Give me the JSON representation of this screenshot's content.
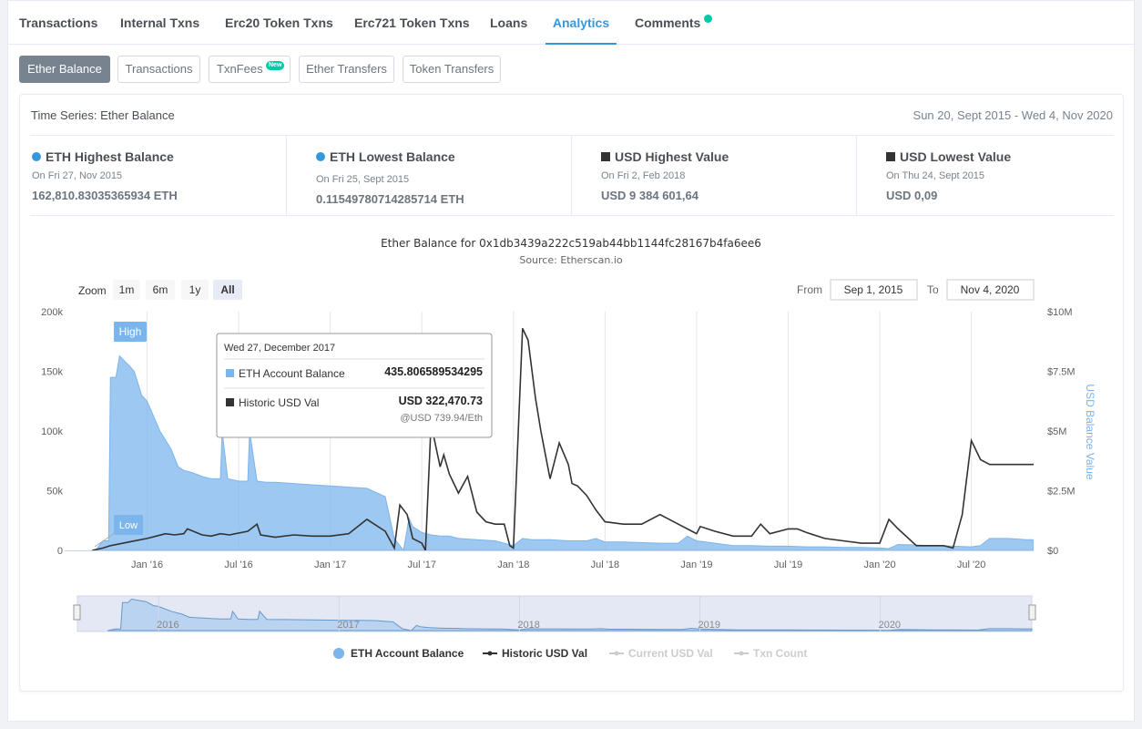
{
  "tabs": [
    {
      "label": "Transactions"
    },
    {
      "label": "Internal Txns"
    },
    {
      "label": "Erc20 Token Txns"
    },
    {
      "label": "Erc721 Token Txns"
    },
    {
      "label": "Loans"
    },
    {
      "label": "Analytics"
    },
    {
      "label": "Comments"
    }
  ],
  "active_tab": "Analytics",
  "subtabs": [
    {
      "label": "Ether Balance"
    },
    {
      "label": "Transactions"
    },
    {
      "label": "TxnFees",
      "badge": "New"
    },
    {
      "label": "Ether Transfers"
    },
    {
      "label": "Token Transfers"
    }
  ],
  "card": {
    "title": "Time Series: Ether Balance",
    "range": "Sun 20, Sept 2015 - Wed 4, Nov 2020"
  },
  "stats": [
    {
      "label": "ETH Highest Balance",
      "date": "On Fri 27, Nov 2015",
      "value": "162,810.83035365934 ETH"
    },
    {
      "label": "ETH Lowest Balance",
      "date": "On Fri 25, Sept 2015",
      "value": "0.11549780714285714 ETH"
    },
    {
      "label": "USD Highest Value",
      "date": "On Fri 2, Feb 2018",
      "value": "USD 9 384 601,64"
    },
    {
      "label": "USD Lowest Value",
      "date": "On Thu 24, Sept 2015",
      "value": "USD 0,09"
    }
  ],
  "colors": {
    "accent": "#3498db",
    "eth_area": "#7cb5ec",
    "usd_line": "#333333",
    "badge": "#00c9a7"
  },
  "chart_data": {
    "type": "area",
    "title": "Ether Balance for 0x1db3439a222c519ab44bb1144fc28167b4fa6ee6",
    "subtitle": "Source: Etherscan.io",
    "zoom": {
      "label": "Zoom",
      "buttons": [
        "1m",
        "6m",
        "1y",
        "All"
      ],
      "selected": "All"
    },
    "range_inputs": {
      "from_label": "From",
      "from": "Sep 1, 2015",
      "to_label": "To",
      "to": "Nov 4, 2020"
    },
    "x_ticks": [
      "Jan '16",
      "Jul '16",
      "Jan '17",
      "Jul '17",
      "Jan '18",
      "Jul '18",
      "Jan '19",
      "Jul '19",
      "Jan '20",
      "Jul '20"
    ],
    "y_left": {
      "ticks": [
        "0",
        "50k",
        "100k",
        "150k",
        "200k"
      ],
      "range": [
        0,
        200000
      ]
    },
    "y_right": {
      "label": "USD Balance Value",
      "ticks": [
        "$0",
        "$2.5M",
        "$5M",
        "$7.5M",
        "$10M"
      ],
      "range": [
        0,
        10000000
      ]
    },
    "navigator_labels": [
      "2016",
      "2017",
      "2018",
      "2019",
      "2020"
    ],
    "flags": [
      {
        "label": "High"
      },
      {
        "label": "Low"
      }
    ],
    "legend": [
      {
        "name": "ETH Account Balance",
        "enabled": true
      },
      {
        "name": "Historic USD Val",
        "enabled": true
      },
      {
        "name": "Current USD Val",
        "enabled": false
      },
      {
        "name": "Txn Count",
        "enabled": false
      }
    ],
    "tooltip": {
      "date": "Wed 27, December 2017",
      "eth_label": "ETH Account Balance",
      "eth_value": "435.806589534295",
      "usd_label": "Historic USD Val",
      "usd_value": "USD 322,470.73",
      "rate": "@USD 739.94/Eth"
    },
    "series": [
      {
        "name": "ETH Account Balance",
        "axis": "left",
        "x": [
          2015.72,
          2015.76,
          2015.79,
          2015.8,
          2015.83,
          2015.85,
          2015.9,
          2015.93,
          2015.97,
          2016.0,
          2016.07,
          2016.13,
          2016.17,
          2016.2,
          2016.25,
          2016.3,
          2016.35,
          2016.4,
          2016.41,
          2016.44,
          2016.5,
          2016.55,
          2016.56,
          2016.6,
          2016.65,
          2016.7,
          2016.8,
          2016.9,
          2017.0,
          2017.1,
          2017.2,
          2017.3,
          2017.35,
          2017.4,
          2017.43,
          2017.45,
          2017.5,
          2017.55,
          2017.6,
          2017.65,
          2017.7,
          2017.8,
          2017.9,
          2017.95,
          2018.0,
          2018.05,
          2018.1,
          2018.2,
          2018.3,
          2018.4,
          2018.45,
          2018.5,
          2018.6,
          2018.7,
          2018.8,
          2018.9,
          2018.95,
          2019.0,
          2019.05,
          2019.1,
          2019.2,
          2019.3,
          2019.4,
          2019.5,
          2019.6,
          2019.7,
          2019.8,
          2019.9,
          2020.0,
          2020.05,
          2020.1,
          2020.2,
          2020.3,
          2020.4,
          2020.5,
          2020.55,
          2020.6,
          2020.7,
          2020.8,
          2020.84
        ],
        "values": [
          500,
          8000,
          8000,
          145000,
          145000,
          162810,
          155000,
          150000,
          130000,
          125000,
          100000,
          85000,
          70000,
          67000,
          65000,
          62000,
          60000,
          60000,
          100000,
          60000,
          58000,
          58000,
          100000,
          58000,
          57000,
          57000,
          56000,
          55000,
          54000,
          53000,
          52000,
          45000,
          10000,
          0,
          27000,
          20000,
          15000,
          13000,
          12000,
          12000,
          10000,
          9000,
          8000,
          6000,
          4000,
          10000,
          9000,
          9000,
          8000,
          8000,
          10000,
          7000,
          7000,
          6500,
          6000,
          6000,
          12000,
          8000,
          7000,
          6000,
          4000,
          4000,
          3500,
          3500,
          3000,
          3000,
          2500,
          2500,
          2000,
          1500,
          5000,
          4500,
          4000,
          3500,
          3000,
          4000,
          10000,
          10000,
          9000,
          9000
        ]
      },
      {
        "name": "Historic USD Val",
        "axis": "right",
        "x": [
          2015.7,
          2015.76,
          2015.8,
          2015.9,
          2016.0,
          2016.05,
          2016.1,
          2016.15,
          2016.2,
          2016.22,
          2016.3,
          2016.35,
          2016.4,
          2016.45,
          2016.55,
          2016.6,
          2016.62,
          2016.7,
          2016.8,
          2016.9,
          2017.0,
          2017.1,
          2017.2,
          2017.3,
          2017.35,
          2017.38,
          2017.42,
          2017.45,
          2017.5,
          2017.52,
          2017.55,
          2017.6,
          2017.62,
          2017.65,
          2017.7,
          2017.75,
          2017.8,
          2017.85,
          2017.9,
          2017.95,
          2017.98,
          2018.0,
          2018.05,
          2018.08,
          2018.12,
          2018.15,
          2018.2,
          2018.25,
          2018.3,
          2018.32,
          2018.35,
          2018.4,
          2018.45,
          2018.5,
          2018.6,
          2018.7,
          2018.8,
          2018.9,
          2019.0,
          2019.02,
          2019.1,
          2019.2,
          2019.3,
          2019.35,
          2019.4,
          2019.5,
          2019.55,
          2019.6,
          2019.7,
          2019.8,
          2019.9,
          2020.0,
          2020.05,
          2020.1,
          2020.2,
          2020.3,
          2020.35,
          2020.4,
          2020.45,
          2020.5,
          2020.55,
          2020.6,
          2020.7,
          2020.8,
          2020.84
        ],
        "values": [
          0,
          100000,
          200000,
          350000,
          500000,
          600000,
          700000,
          650000,
          700000,
          900000,
          650000,
          600000,
          700000,
          650000,
          800000,
          1100000,
          650000,
          550000,
          650000,
          600000,
          600000,
          700000,
          1300000,
          800000,
          100000,
          1900000,
          1500000,
          500000,
          300000,
          0,
          5300000,
          3500000,
          4000000,
          3200000,
          2400000,
          3100000,
          1600000,
          1200000,
          1100000,
          1100000,
          200000,
          100000,
          9300000,
          8800000,
          6400000,
          5000000,
          3000000,
          4500000,
          3600000,
          2800000,
          2700000,
          2300000,
          1700000,
          1200000,
          1100000,
          1100000,
          1500000,
          1100000,
          700000,
          1000000,
          800000,
          600000,
          600000,
          1100000,
          700000,
          900000,
          900000,
          750000,
          500000,
          400000,
          300000,
          300000,
          1300000,
          900000,
          200000,
          200000,
          200000,
          100000,
          1500000,
          4600000,
          3800000,
          3600000,
          3600000,
          3600000,
          3600000
        ]
      }
    ]
  }
}
